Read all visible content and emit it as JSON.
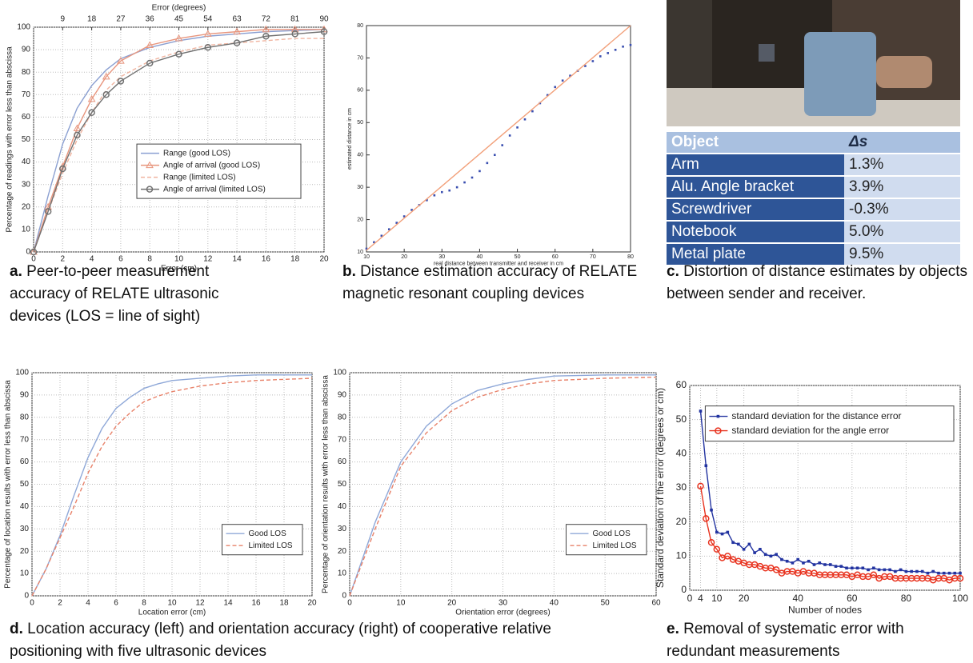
{
  "chart_data": [
    {
      "type": "line",
      "x_label": "Error (cm)",
      "y_label": "Percentage of readings with error less than abscissa",
      "x2_label": "Error (degrees)",
      "x": [
        0,
        1,
        2,
        3,
        4,
        5,
        6,
        8,
        10,
        12,
        14,
        16,
        18,
        20
      ],
      "series": [
        {
          "name": "Range (good LOS)",
          "color": "#8a9fd1",
          "values": [
            0,
            25,
            48,
            64,
            74,
            81,
            86,
            91,
            94,
            96,
            97,
            98,
            98.5,
            99
          ]
        },
        {
          "name": "Angle of arrival (good LOS)",
          "color": "#e8957d",
          "marker": "triangle",
          "values": [
            0,
            20,
            38,
            55,
            68,
            78,
            85,
            92,
            95,
            97,
            98,
            99,
            99,
            99
          ]
        },
        {
          "name": "Range (limited LOS)",
          "color": "#f0b4a0",
          "dash": true,
          "values": [
            0,
            18,
            35,
            50,
            62,
            72,
            78,
            85,
            89,
            92,
            93,
            94,
            95,
            95
          ]
        },
        {
          "name": "Angle of arrival (limited LOS)",
          "color": "#707070",
          "marker": "circle",
          "values": [
            0,
            18,
            37,
            52,
            62,
            70,
            76,
            84,
            88,
            91,
            93,
            96,
            97,
            98
          ]
        }
      ],
      "xlim": [
        0,
        20
      ],
      "xticks": [
        0,
        2,
        4,
        6,
        8,
        10,
        12,
        14,
        16,
        18,
        20
      ],
      "x2lim": [
        0,
        90
      ],
      "x2ticks": [
        9,
        18,
        27,
        36,
        45,
        54,
        63,
        72,
        81,
        90
      ],
      "ylim": [
        0,
        100
      ],
      "yticks": [
        0,
        10,
        20,
        30,
        40,
        50,
        60,
        70,
        80,
        90,
        100
      ],
      "grid": true,
      "legend": "center"
    },
    {
      "type": "scatter",
      "x_label": "real distance between transmitter and receiver in cm",
      "y_label": "estimated distance in cm",
      "series": [
        {
          "color": "#3a4fb0",
          "marker": "dot",
          "line": false,
          "x": [
            10,
            12,
            14,
            16,
            18,
            20,
            22,
            24,
            26,
            28,
            30,
            32,
            34,
            36,
            38,
            40,
            42,
            44,
            46,
            48,
            50,
            52,
            54,
            56,
            58,
            60,
            62,
            64,
            66,
            68,
            70,
            72,
            74,
            76,
            78,
            80
          ],
          "values": [
            11,
            13,
            15,
            17,
            19,
            21,
            23,
            24.5,
            26,
            27.5,
            28.5,
            29,
            30,
            31.5,
            33,
            35,
            37.5,
            40,
            43,
            46,
            48.5,
            51,
            53.5,
            56,
            58.5,
            61,
            63,
            64.5,
            66,
            67.5,
            69,
            70.5,
            71.5,
            72.5,
            73.5,
            74
          ]
        },
        {
          "color": "#f2a07a",
          "x": [
            10,
            80
          ],
          "values": [
            10.5,
            80
          ]
        }
      ],
      "xlim": [
        10,
        80
      ],
      "xticks": [
        10,
        20,
        30,
        40,
        50,
        60,
        70,
        80
      ],
      "ylim": [
        10,
        80
      ],
      "yticks": [
        10,
        20,
        30,
        40,
        50,
        60,
        70,
        80
      ],
      "grid": false
    },
    {
      "type": "line",
      "x_label": "Location error (cm)",
      "y_label": "Percentage of location results with error less than abscissa",
      "x": [
        0,
        1,
        2,
        3,
        4,
        5,
        6,
        7,
        8,
        9,
        10,
        12,
        14,
        16,
        18,
        20
      ],
      "series": [
        {
          "name": "Good LOS",
          "color": "#8fa8d8",
          "values": [
            0,
            12,
            27,
            45,
            62,
            75,
            84,
            89,
            93,
            95,
            96.5,
            97.5,
            98.5,
            99,
            99,
            99
          ]
        },
        {
          "name": "Limited LOS",
          "color": "#e8826a",
          "dash": true,
          "values": [
            0,
            12,
            26,
            40,
            55,
            67,
            76,
            82,
            87,
            89.5,
            91.5,
            94,
            95.5,
            96.5,
            97,
            97.5
          ]
        }
      ],
      "xlim": [
        0,
        20
      ],
      "xticks": [
        0,
        2,
        4,
        6,
        8,
        10,
        12,
        14,
        16,
        18,
        20
      ],
      "ylim": [
        0,
        100
      ],
      "yticks": [
        0,
        10,
        20,
        30,
        40,
        50,
        60,
        70,
        80,
        90,
        100
      ],
      "grid": true,
      "legend": "lower right"
    },
    {
      "type": "line",
      "x_label": "Orientation error (degrees)",
      "y_label": "Percentage of orientation results with error less than abscissa",
      "x": [
        0,
        5,
        10,
        15,
        20,
        25,
        30,
        35,
        40,
        50,
        60
      ],
      "series": [
        {
          "name": "Good LOS",
          "color": "#8fa8d8",
          "values": [
            0,
            33,
            60,
            76,
            86,
            92,
            95,
            97,
            98.5,
            99,
            99
          ]
        },
        {
          "name": "Limited LOS",
          "color": "#e8826a",
          "dash": true,
          "values": [
            0,
            30,
            58,
            73,
            83,
            89,
            92.5,
            95,
            96.5,
            97.5,
            98
          ]
        }
      ],
      "xlim": [
        0,
        60
      ],
      "xticks": [
        0,
        10,
        20,
        30,
        40,
        50,
        60
      ],
      "ylim": [
        0,
        100
      ],
      "yticks": [
        0,
        10,
        20,
        30,
        40,
        50,
        60,
        70,
        80,
        90,
        100
      ],
      "grid": true,
      "legend": "lower right"
    },
    {
      "type": "line",
      "x_label": "Number of nodes",
      "y_label": "Standard deviation of the error (degrees or cm)",
      "x": [
        4,
        6,
        8,
        10,
        12,
        14,
        16,
        18,
        20,
        22,
        24,
        26,
        28,
        30,
        32,
        34,
        36,
        38,
        40,
        42,
        44,
        46,
        48,
        50,
        52,
        54,
        56,
        58,
        60,
        62,
        64,
        66,
        68,
        70,
        72,
        74,
        76,
        78,
        80,
        82,
        84,
        86,
        88,
        90,
        92,
        94,
        96,
        98,
        100
      ],
      "series": [
        {
          "name": "standard deviation for the distance error",
          "color": "#2233a0",
          "marker": "square",
          "values": [
            52.5,
            36.5,
            23.5,
            17,
            16.5,
            17,
            14,
            13.5,
            12,
            13.5,
            11,
            12,
            10.5,
            10,
            10.5,
            9,
            8.5,
            8,
            9,
            8,
            8.5,
            7.5,
            8,
            7.5,
            7.5,
            7,
            7,
            6.5,
            6.5,
            6.5,
            6.5,
            6,
            6.5,
            6,
            6,
            6,
            5.5,
            6,
            5.5,
            5.5,
            5.5,
            5.5,
            5,
            5.5,
            5,
            5,
            5,
            5,
            5
          ]
        },
        {
          "name": "standard deviation for the angle error",
          "color": "#e8321e",
          "marker": "circle",
          "values": [
            30.5,
            21,
            14,
            12,
            9.5,
            10,
            9,
            8.5,
            8,
            7.5,
            7.5,
            7,
            6.5,
            6.5,
            6,
            5,
            5.5,
            5.5,
            5,
            5.5,
            5,
            5,
            4.5,
            4.5,
            4.5,
            4.5,
            4.5,
            4.5,
            4,
            4.5,
            4,
            4,
            4.5,
            3.5,
            4,
            4,
            3.5,
            3.5,
            3.5,
            3.5,
            3.5,
            3.5,
            3.5,
            3,
            3.5,
            3.5,
            3,
            3.5,
            3.5
          ]
        }
      ],
      "xlim": [
        0,
        100
      ],
      "xticks": [
        0,
        4,
        10,
        20,
        40,
        60,
        80,
        100
      ],
      "ylim": [
        0,
        60
      ],
      "yticks": [
        0,
        10,
        20,
        30,
        40,
        50,
        60
      ],
      "grid": true,
      "legend": "upper right"
    }
  ],
  "table": {
    "header": [
      "Object",
      "Δs"
    ],
    "rows": [
      [
        "Arm",
        "1.3%"
      ],
      [
        "Alu. Angle bracket",
        "3.9%"
      ],
      [
        "Screwdriver",
        "-0.3%"
      ],
      [
        "Notebook",
        "5.0%"
      ],
      [
        "Metal plate",
        "9.5%"
      ]
    ]
  },
  "captions": [
    {
      "label": "a.",
      "text": "Peer-to-peer measurement accuracy of RELATE ultrasonic devices (LOS = line of sight)"
    },
    {
      "label": "b.",
      "text": "Distance estimation accuracy of RELATE magnetic resonant coupling devices"
    },
    {
      "label": "c.",
      "text": "Distortion of distance estimates by objects between sender and receiver."
    },
    {
      "label": "d.",
      "text": "Location accuracy (left) and orientation accuracy (right) of cooperative relative positioning with five ultrasonic devices"
    },
    {
      "label": "e.",
      "text": "Removal of systematic error with redundant measurements"
    }
  ]
}
